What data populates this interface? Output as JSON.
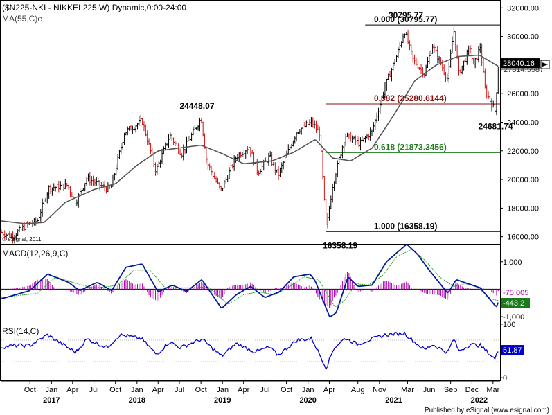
{
  "header": {
    "title": "($N225-NKI - NIKKEI 225,W) Dynamic,0:00-24:00",
    "ma_label": "MA(55,C)e"
  },
  "colors": {
    "up_bar": "#000000",
    "down_bar": "#d01010",
    "ma_line": "#555555",
    "fib_0": "#000000",
    "fib_382": "#8b1010",
    "fib_618": "#1a7a1a",
    "fib_100": "#000000",
    "macd_line": "#001a99",
    "signal_line": "#2aa02a",
    "histogram": "#b000b0",
    "rsi_line": "#0000cc",
    "price_tag_bg": "#000000",
    "macd_tag_bg": "#b000b0",
    "signal_tag_bg": "#1a7a1a",
    "rsi_tag_bg": "#0000cc"
  },
  "chart_data": [
    {
      "type": "candlestick",
      "title": "($N225-NKI - NIKKEI 225,W) Dynamic,0:00-24:00",
      "ylim": [
        15500,
        32500
      ],
      "y_ticks": [
        "32000.00",
        "30000.00",
        "28000.00",
        "26000.00",
        "24000.00",
        "22000.00",
        "20000.00",
        "18000.00",
        "16000.00"
      ],
      "y_tick_values": [
        32000,
        30000,
        28000,
        26000,
        24000,
        22000,
        20000,
        18000,
        16000
      ],
      "x_tick_labels": [
        "Oct",
        "Jan",
        "Apr",
        "Jul",
        "Oct",
        "Jan",
        "Apr",
        "Jul",
        "Oct",
        "Jan",
        "Apr",
        "Jul",
        "Oct",
        "Jan",
        "Apr",
        "Aug",
        "Nov",
        "Mar",
        "Jun",
        "Sep",
        "Dec",
        "Mar"
      ],
      "x_tick_dates": [
        "2016-10-01",
        "2017-01-01",
        "2017-04-01",
        "2017-07-01",
        "2017-10-01",
        "2018-01-01",
        "2018-04-01",
        "2018-07-01",
        "2018-10-01",
        "2019-01-01",
        "2019-04-01",
        "2019-07-01",
        "2019-10-01",
        "2020-01-01",
        "2020-04-01",
        "2020-08-01",
        "2020-11-01",
        "2021-03-01",
        "2021-06-01",
        "2021-09-01",
        "2021-12-01",
        "2022-03-01"
      ],
      "x_year_labels": [
        "2017",
        "2018",
        "2019",
        "2020",
        "2021",
        "2022"
      ],
      "x_year_dates": [
        "2017-01-01",
        "2018-01-01",
        "2019-01-01",
        "2020-01-01",
        "2021-01-01",
        "2022-01-01"
      ],
      "x_range": [
        "2016-06-01",
        "2022-03-31"
      ],
      "price_keypoints": [
        [
          "2016-06-01",
          16300
        ],
        [
          "2016-07-15",
          16000
        ],
        [
          "2016-09-15",
          16800
        ],
        [
          "2016-11-01",
          17100
        ],
        [
          "2016-12-20",
          19400
        ],
        [
          "2017-03-10",
          19600
        ],
        [
          "2017-04-14",
          18400
        ],
        [
          "2017-06-01",
          20100
        ],
        [
          "2017-08-20",
          19400
        ],
        [
          "2017-09-10",
          19300
        ],
        [
          "2017-11-09",
          23300
        ],
        [
          "2018-01-23",
          24100
        ],
        [
          "2018-03-23",
          20600
        ],
        [
          "2018-05-21",
          23100
        ],
        [
          "2018-07-10",
          21800
        ],
        [
          "2018-10-02",
          24300
        ],
        [
          "2018-10-26",
          21200
        ],
        [
          "2018-12-25",
          19200
        ],
        [
          "2019-03-01",
          21600
        ],
        [
          "2019-04-25",
          22300
        ],
        [
          "2019-06-01",
          20500
        ],
        [
          "2019-07-20",
          21600
        ],
        [
          "2019-08-26",
          20300
        ],
        [
          "2019-11-15",
          23400
        ],
        [
          "2020-01-17",
          24000
        ],
        [
          "2020-02-20",
          23200
        ],
        [
          "2020-03-19",
          16500
        ],
        [
          "2020-04-15",
          19600
        ],
        [
          "2020-06-08",
          23100
        ],
        [
          "2020-08-10",
          22500
        ],
        [
          "2020-10-01",
          23400
        ],
        [
          "2020-11-27",
          26600
        ],
        [
          "2021-01-15",
          28700
        ],
        [
          "2021-02-16",
          30400
        ],
        [
          "2021-03-24",
          28400
        ],
        [
          "2021-05-13",
          27400
        ],
        [
          "2021-06-15",
          29400
        ],
        [
          "2021-08-20",
          27000
        ],
        [
          "2021-09-14",
          30500
        ],
        [
          "2021-10-06",
          27400
        ],
        [
          "2021-11-25",
          29300
        ],
        [
          "2021-12-06",
          27800
        ],
        [
          "2022-01-05",
          29300
        ],
        [
          "2022-01-27",
          26200
        ],
        [
          "2022-03-09",
          24800
        ],
        [
          "2022-03-25",
          28100
        ]
      ],
      "ma_keypoints": [
        [
          "2016-06-01",
          17100
        ],
        [
          "2016-09-15",
          16900
        ],
        [
          "2016-12-01",
          17000
        ],
        [
          "2017-03-01",
          18400
        ],
        [
          "2017-07-01",
          19300
        ],
        [
          "2017-10-01",
          19700
        ],
        [
          "2018-01-01",
          21000
        ],
        [
          "2018-04-01",
          22000
        ],
        [
          "2018-07-01",
          22200
        ],
        [
          "2018-10-01",
          22400
        ],
        [
          "2019-01-01",
          21800
        ],
        [
          "2019-04-01",
          21100
        ],
        [
          "2019-08-01",
          21300
        ],
        [
          "2019-11-01",
          21900
        ],
        [
          "2020-02-01",
          22800
        ],
        [
          "2020-04-15",
          21500
        ],
        [
          "2020-07-01",
          21300
        ],
        [
          "2020-10-01",
          22200
        ],
        [
          "2021-01-01",
          24500
        ],
        [
          "2021-04-01",
          26900
        ],
        [
          "2021-07-01",
          28000
        ],
        [
          "2021-10-01",
          28600
        ],
        [
          "2022-01-01",
          28700
        ],
        [
          "2022-03-25",
          27900
        ]
      ],
      "fibonacci": {
        "high_date": "2021-02-16",
        "low_date": "2020-03-19",
        "start_date": "2020-03-19",
        "end_date": "2022-03-31",
        "levels": [
          {
            "label": "0.000 (30795.77)",
            "value": 30795.77
          },
          {
            "label": "0.382 (25280.6144)",
            "value": 25280.6144
          },
          {
            "label": "0.618 (21873.3456)",
            "value": 21873.3456
          },
          {
            "label": "1.000 (16358.19)",
            "value": 16358.19
          }
        ]
      },
      "annotations": [
        {
          "text": "30795.77",
          "date": "2021-02-16",
          "value": 30795.77,
          "position": "above"
        },
        {
          "text": "24448.07",
          "date": "2018-10-02",
          "value": 24448.07,
          "position": "above"
        },
        {
          "text": "24681.74",
          "date": "2022-03-09",
          "value": 24681.74,
          "position": "below"
        },
        {
          "text": "16358.19",
          "date": "2020-03-19",
          "value": 16358.19,
          "position": "below"
        }
      ],
      "last_price": "28040.16",
      "tag_under": "27814.5587",
      "watermark": "© eSignal, 2011"
    },
    {
      "type": "line",
      "title": "MACD(12,26,9,C)",
      "ylim": [
        -1150,
        1600
      ],
      "y_ticks": [
        "1,000",
        "-1,000"
      ],
      "y_tick_values": [
        1000,
        -1000
      ],
      "macd_value": "-75.005",
      "signal_value": "-443.2",
      "macd_keypoints": [
        [
          "2016-06-01",
          -350
        ],
        [
          "2016-10-01",
          -50
        ],
        [
          "2016-12-15",
          550
        ],
        [
          "2017-03-15",
          250
        ],
        [
          "2017-05-01",
          -50
        ],
        [
          "2017-07-15",
          250
        ],
        [
          "2017-09-15",
          -50
        ],
        [
          "2017-11-15",
          800
        ],
        [
          "2018-01-23",
          920
        ],
        [
          "2018-04-01",
          -100
        ],
        [
          "2018-06-01",
          150
        ],
        [
          "2018-08-01",
          -80
        ],
        [
          "2018-10-05",
          350
        ],
        [
          "2018-12-28",
          -700
        ],
        [
          "2019-03-01",
          -200
        ],
        [
          "2019-05-01",
          100
        ],
        [
          "2019-07-01",
          -300
        ],
        [
          "2019-09-01",
          -100
        ],
        [
          "2019-11-01",
          450
        ],
        [
          "2020-01-10",
          550
        ],
        [
          "2020-02-01",
          300
        ],
        [
          "2020-04-03",
          -1020
        ],
        [
          "2020-05-01",
          -850
        ],
        [
          "2020-06-20",
          450
        ],
        [
          "2020-08-01",
          100
        ],
        [
          "2020-10-01",
          150
        ],
        [
          "2020-12-01",
          1000
        ],
        [
          "2021-02-26",
          1640
        ],
        [
          "2021-04-15",
          1250
        ],
        [
          "2021-06-01",
          700
        ],
        [
          "2021-08-20",
          -150
        ],
        [
          "2021-09-25",
          350
        ],
        [
          "2021-11-15",
          200
        ],
        [
          "2022-01-05",
          50
        ],
        [
          "2022-03-15",
          -650
        ],
        [
          "2022-03-25",
          -443
        ]
      ],
      "signal_keypoints": [
        [
          "2016-06-01",
          -300
        ],
        [
          "2016-11-01",
          -150
        ],
        [
          "2017-01-20",
          450
        ],
        [
          "2017-04-20",
          200
        ],
        [
          "2017-06-20",
          60
        ],
        [
          "2017-08-20",
          80
        ],
        [
          "2017-10-10",
          150
        ],
        [
          "2017-12-20",
          700
        ],
        [
          "2018-02-25",
          700
        ],
        [
          "2018-05-01",
          50
        ],
        [
          "2018-07-01",
          50
        ],
        [
          "2018-09-01",
          60
        ],
        [
          "2018-11-01",
          80
        ],
        [
          "2019-01-25",
          -550
        ],
        [
          "2019-04-01",
          -200
        ],
        [
          "2019-06-01",
          -100
        ],
        [
          "2019-08-15",
          -200
        ],
        [
          "2019-10-15",
          100
        ],
        [
          "2019-12-15",
          450
        ],
        [
          "2020-02-15",
          350
        ],
        [
          "2020-04-25",
          -650
        ],
        [
          "2020-06-01",
          -450
        ],
        [
          "2020-07-25",
          200
        ],
        [
          "2020-09-15",
          150
        ],
        [
          "2020-11-15",
          500
        ],
        [
          "2021-01-15",
          1200
        ],
        [
          "2021-03-20",
          1450
        ],
        [
          "2021-05-15",
          1050
        ],
        [
          "2021-07-15",
          450
        ],
        [
          "2021-09-15",
          100
        ],
        [
          "2021-11-01",
          200
        ],
        [
          "2021-12-20",
          100
        ],
        [
          "2022-02-20",
          -350
        ],
        [
          "2022-03-25",
          -420
        ]
      ]
    },
    {
      "type": "line",
      "title": "RSI(14,C)",
      "ylim": [
        -5,
        105
      ],
      "y_ticks": [
        "100",
        "0"
      ],
      "y_tick_values": [
        100,
        0
      ],
      "rsi_value": "51.87",
      "rsi_keypoints": [
        [
          "2016-06-01",
          57
        ],
        [
          "2016-08-01",
          60
        ],
        [
          "2016-10-01",
          60
        ],
        [
          "2016-12-15",
          80
        ],
        [
          "2017-02-15",
          63
        ],
        [
          "2017-04-14",
          47
        ],
        [
          "2017-06-01",
          72
        ],
        [
          "2017-08-25",
          56
        ],
        [
          "2017-10-20",
          80
        ],
        [
          "2018-01-20",
          73
        ],
        [
          "2018-03-25",
          43
        ],
        [
          "2018-05-20",
          67
        ],
        [
          "2018-07-05",
          56
        ],
        [
          "2018-10-05",
          72
        ],
        [
          "2018-12-28",
          40
        ],
        [
          "2019-03-01",
          64
        ],
        [
          "2019-05-20",
          48
        ],
        [
          "2019-07-20",
          57
        ],
        [
          "2019-08-26",
          42
        ],
        [
          "2019-11-15",
          70
        ],
        [
          "2020-01-17",
          73
        ],
        [
          "2020-03-19",
          18
        ],
        [
          "2020-04-20",
          55
        ],
        [
          "2020-06-08",
          74
        ],
        [
          "2020-08-01",
          62
        ],
        [
          "2020-09-01",
          68
        ],
        [
          "2020-11-27",
          80
        ],
        [
          "2021-02-16",
          83
        ],
        [
          "2021-04-01",
          66
        ],
        [
          "2021-05-14",
          52
        ],
        [
          "2021-06-15",
          62
        ],
        [
          "2021-08-20",
          47
        ],
        [
          "2021-09-14",
          73
        ],
        [
          "2021-10-06",
          50
        ],
        [
          "2021-11-25",
          62
        ],
        [
          "2022-01-05",
          60
        ],
        [
          "2022-03-09",
          35
        ],
        [
          "2022-03-25",
          52
        ]
      ]
    }
  ],
  "x_axis": {
    "month_labels": [
      "Oct",
      "Jan",
      "Apr",
      "Jul",
      "Oct",
      "Jan",
      "Apr",
      "Jul",
      "Oct",
      "Jan",
      "Apr",
      "Jul",
      "Oct",
      "Jan",
      "Apr",
      "Aug",
      "Nov",
      "Mar",
      "Jun",
      "Sep",
      "Dec",
      "Mar"
    ],
    "year_labels": [
      "2017",
      "2018",
      "2019",
      "2020",
      "2021",
      "2022"
    ]
  },
  "footer": {
    "credit": "Published by eSignal (www.esignal.com)"
  }
}
